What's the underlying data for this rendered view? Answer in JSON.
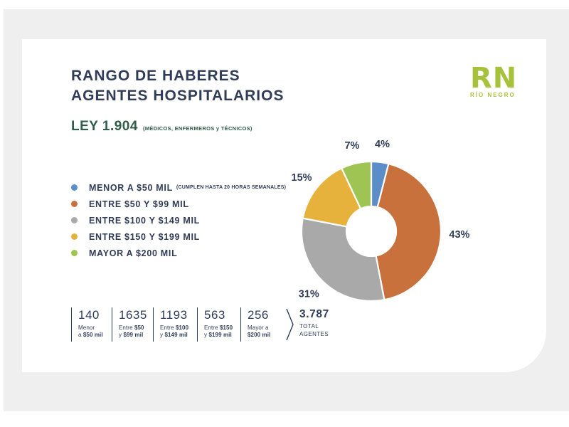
{
  "page": {
    "title_line1": "RANGO DE HABERES",
    "title_line2": "AGENTES HOSPITALARIOS",
    "law": "LEY 1.904",
    "law_note": "(MÉDICOS, ENFERMEROS y TÉCNICOS)"
  },
  "logo": {
    "text": "RN",
    "subtext": "RÍO NEGRO",
    "color": "#a6c23d"
  },
  "colors": {
    "navy": "#303c58",
    "green_heading": "#2f5c4b",
    "background": "#efefef",
    "card": "#ffffff"
  },
  "legend": {
    "items": [
      {
        "label": "MENOR A $50 MIL",
        "note": "(CUMPLEN HASTA 20 HORAS  SEMANALES)",
        "color": "#5b8dc8"
      },
      {
        "label": "ENTRE $50 Y $99 MIL",
        "note": "",
        "color": "#c9713c"
      },
      {
        "label": "ENTRE $100 Y $149 MIL",
        "note": "",
        "color": "#a9a9a9"
      },
      {
        "label": "ENTRE $150 Y $199 MIL",
        "note": "",
        "color": "#e6b23c"
      },
      {
        "label": "MAYOR A $200 MIL",
        "note": "",
        "color": "#a0c453"
      }
    ]
  },
  "chart_data": {
    "type": "pie",
    "donut": true,
    "title": "RANGO DE HABERES AGENTES HOSPITALARIOS — LEY 1.904",
    "categories": [
      "MENOR A $50 MIL",
      "ENTRE $50 Y $99 MIL",
      "ENTRE $100 Y $149 MIL",
      "ENTRE $150 Y $199 MIL",
      "MAYOR A $200 MIL"
    ],
    "values": [
      4,
      43,
      31,
      15,
      7
    ],
    "value_labels": [
      "4%",
      "43%",
      "31%",
      "15%",
      "7%"
    ],
    "counts": [
      140,
      1635,
      1193,
      563,
      256
    ],
    "total": 3787,
    "colors": [
      "#5b8dc8",
      "#c9713c",
      "#a9a9a9",
      "#e6b23c",
      "#a0c453"
    ],
    "start_angle_deg": 0,
    "direction": "clockwise",
    "legend_position": "left"
  },
  "stats": {
    "items": [
      {
        "value": "140",
        "l1": "Menor",
        "l1b": "",
        "l2": "a ",
        "l2b": "$50 mil"
      },
      {
        "value": "1635",
        "l1": "Entre ",
        "l1b": "$50",
        "l2": "y ",
        "l2b": "$99 mil"
      },
      {
        "value": "1193",
        "l1": "Entre ",
        "l1b": "$100",
        "l2": "y ",
        "l2b": "$149 mil"
      },
      {
        "value": "563",
        "l1": "Entre ",
        "l1b": "$150",
        "l2": "y ",
        "l2b": "$199 mil"
      },
      {
        "value": "256",
        "l1": "Mayor a",
        "l1b": "",
        "l2": "",
        "l2b": "$200 mil"
      }
    ],
    "total": {
      "value": "3.787",
      "line1": "TOTAL",
      "line2": "AGENTES"
    }
  }
}
